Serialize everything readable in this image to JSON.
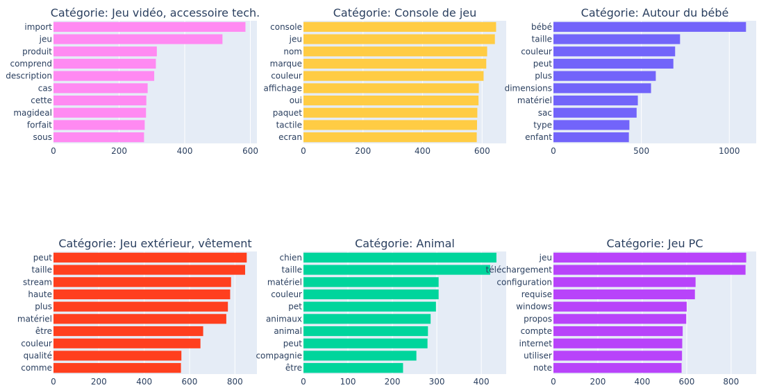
{
  "chart_data": [
    {
      "type": "bar",
      "orientation": "horizontal",
      "title": "Catégorie: Jeu vidéo, accessoire tech.",
      "color": "#ff8af2",
      "categories": [
        "import",
        "jeu",
        "produit",
        "comprend",
        "description",
        "cas",
        "cette",
        "magideal",
        "forfait",
        "sous"
      ],
      "values": [
        585,
        515,
        315,
        312,
        307,
        287,
        283,
        282,
        278,
        276
      ],
      "xlim": [
        0,
        620
      ],
      "xticks": [
        0,
        200,
        400,
        600
      ]
    },
    {
      "type": "bar",
      "orientation": "horizontal",
      "title": "Catégorie: Console de jeu",
      "color": "#ffcc44",
      "categories": [
        "console",
        "jeu",
        "nom",
        "marque",
        "couleur",
        "affichage",
        "oui",
        "paquet",
        "tactile",
        "ecran"
      ],
      "values": [
        647,
        643,
        617,
        614,
        605,
        589,
        588,
        584,
        583,
        582
      ],
      "xlim": [
        0,
        681
      ],
      "xticks": [
        0,
        200,
        400,
        600
      ]
    },
    {
      "type": "bar",
      "orientation": "horizontal",
      "title": "Catégorie: Autour du bébé",
      "color": "#7264fa",
      "categories": [
        "bébé",
        "taille",
        "couleur",
        "peut",
        "plus",
        "dimensions",
        "matériel",
        "sac",
        "type",
        "enfant"
      ],
      "values": [
        1095,
        720,
        692,
        682,
        582,
        555,
        480,
        473,
        432,
        429
      ],
      "xlim": [
        0,
        1153
      ],
      "xticks": [
        0,
        500,
        1000
      ]
    },
    {
      "type": "bar",
      "orientation": "horizontal",
      "title": "Catégorie: Jeu extérieur, vêtement",
      "color": "#ff3f1e",
      "categories": [
        "peut",
        "taille",
        "stream",
        "haute",
        "plus",
        "matériel",
        "être",
        "couleur",
        "qualité",
        "comme"
      ],
      "values": [
        852,
        845,
        783,
        779,
        769,
        762,
        660,
        648,
        564,
        562
      ],
      "xlim": [
        0,
        897
      ],
      "xticks": [
        0,
        200,
        400,
        600,
        800
      ]
    },
    {
      "type": "bar",
      "orientation": "horizontal",
      "title": "Catégorie: Animal",
      "color": "#00d59c",
      "categories": [
        "chien",
        "taille",
        "matériel",
        "couleur",
        "pet",
        "animaux",
        "animal",
        "peut",
        "compagnie",
        "être"
      ],
      "values": [
        434,
        420,
        304,
        304,
        298,
        286,
        280,
        279,
        254,
        224
      ],
      "xlim": [
        0,
        456
      ],
      "xticks": [
        0,
        100,
        200,
        300,
        400
      ]
    },
    {
      "type": "bar",
      "orientation": "horizontal",
      "title": "Catégorie: Jeu PC",
      "color": "#b843fa",
      "categories": [
        "jeu",
        "téléchargement",
        "configuration",
        "requise",
        "windows",
        "propos",
        "compte",
        "internet",
        "utiliser",
        "note"
      ],
      "values": [
        868,
        865,
        640,
        637,
        600,
        598,
        582,
        580,
        579,
        577
      ],
      "xlim": [
        0,
        913
      ],
      "xticks": [
        0,
        200,
        400,
        600,
        800
      ]
    }
  ]
}
